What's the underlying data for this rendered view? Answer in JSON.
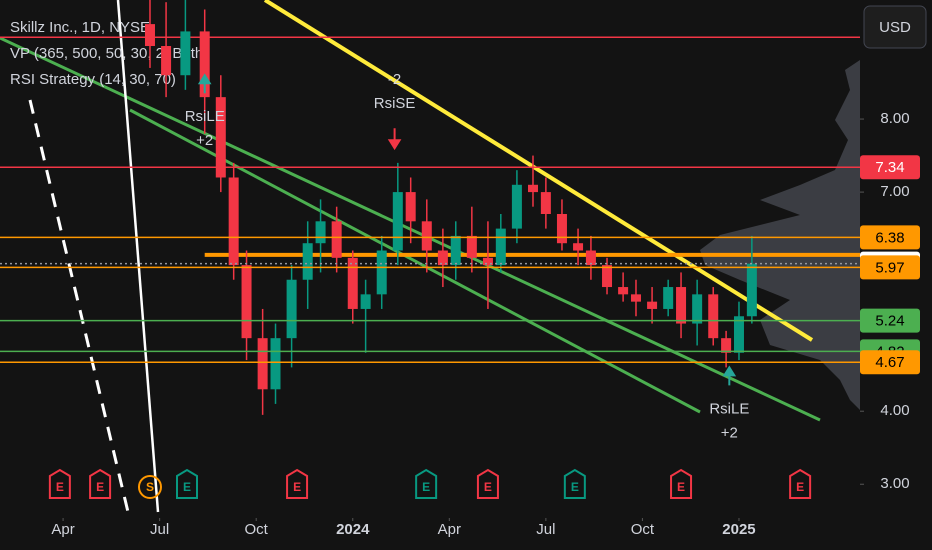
{
  "chart_data": {
    "type": "candlestick",
    "title": "Skillz Inc., 1D, NYSE",
    "indicators": [
      "VP (365, 500, 50, 30, 2, Both)",
      "RSI Strategy (14, 30, 70)"
    ],
    "currency": "USD",
    "up_color": "#089981",
    "down_color": "#f23645",
    "x": [
      5.7,
      6.2,
      6.8,
      7.4,
      7.9,
      8.3,
      8.7,
      9.2,
      9.6,
      10.1,
      10.6,
      11.0,
      11.5,
      12.0,
      12.4,
      12.9,
      13.4,
      13.8,
      14.3,
      14.8,
      15.2,
      15.7,
      16.2,
      16.6,
      17.1,
      17.6,
      18.0,
      18.5,
      19.0,
      19.4,
      19.9,
      20.4,
      20.8,
      21.3,
      21.8,
      22.2,
      22.7,
      23.2,
      23.6,
      24.0,
      24.4
    ],
    "open": [
      9.3,
      9.0,
      8.6,
      9.2,
      8.3,
      7.2,
      6.0,
      5.0,
      4.3,
      5.0,
      5.8,
      6.3,
      6.6,
      6.1,
      5.4,
      5.6,
      6.2,
      7.0,
      6.6,
      6.2,
      6.0,
      6.4,
      6.1,
      6.0,
      6.5,
      7.1,
      7.0,
      6.7,
      6.3,
      6.2,
      6.0,
      5.7,
      5.6,
      5.5,
      5.4,
      5.7,
      5.2,
      5.6,
      5.0,
      4.8,
      5.3
    ],
    "high": [
      9.8,
      9.6,
      9.7,
      9.5,
      8.6,
      7.4,
      6.2,
      5.4,
      5.2,
      6.0,
      6.6,
      6.9,
      6.8,
      6.2,
      5.8,
      6.4,
      7.4,
      7.2,
      6.9,
      6.5,
      6.6,
      6.8,
      6.6,
      6.7,
      7.3,
      7.5,
      7.2,
      6.9,
      6.5,
      6.4,
      6.1,
      5.9,
      5.8,
      5.7,
      5.8,
      5.9,
      5.8,
      5.7,
      5.1,
      5.5,
      6.4
    ],
    "low": [
      8.7,
      8.3,
      8.4,
      7.8,
      7.0,
      5.8,
      4.7,
      3.95,
      4.1,
      4.6,
      5.4,
      5.9,
      5.9,
      5.2,
      4.8,
      5.4,
      6.0,
      6.3,
      5.9,
      5.7,
      5.8,
      5.9,
      5.4,
      5.9,
      6.3,
      6.8,
      6.5,
      6.2,
      6.0,
      5.8,
      5.6,
      5.5,
      5.3,
      5.2,
      5.3,
      5.0,
      4.9,
      4.9,
      4.6,
      4.7,
      5.2
    ],
    "close": [
      9.0,
      8.6,
      9.2,
      8.3,
      7.2,
      6.0,
      5.0,
      4.3,
      5.0,
      5.8,
      6.3,
      6.6,
      6.1,
      5.4,
      5.6,
      6.2,
      7.0,
      6.6,
      6.2,
      6.0,
      6.4,
      6.1,
      6.0,
      6.5,
      7.1,
      7.0,
      6.7,
      6.3,
      6.2,
      6.0,
      5.7,
      5.6,
      5.5,
      5.4,
      5.7,
      5.2,
      5.6,
      5.0,
      4.8,
      5.3,
      6.02
    ],
    "xlim": [
      1.04,
      27.76
    ],
    "xticks": [
      {
        "value": 3,
        "label": "Apr"
      },
      {
        "value": 6,
        "label": "Jul"
      },
      {
        "value": 9,
        "label": "Oct"
      },
      {
        "value": 12,
        "label": "2024"
      },
      {
        "value": 15,
        "label": "Apr"
      },
      {
        "value": 18,
        "label": "Jul"
      },
      {
        "value": 21,
        "label": "Oct"
      },
      {
        "value": 24,
        "label": "2025"
      }
    ],
    "ylim": [
      2.62,
      9.63
    ],
    "yticks": [
      {
        "value": 8,
        "label": "8.00"
      },
      {
        "value": 7,
        "label": "7.00"
      },
      {
        "value": 4,
        "label": "4.00"
      },
      {
        "value": 3,
        "label": "3.00"
      }
    ],
    "levels": [
      {
        "value": 7.34,
        "color": "#f23645"
      },
      {
        "value": 6.38,
        "color": "#ff9800"
      },
      {
        "value": 6.02,
        "color": "#ffffff"
      },
      {
        "value": 5.97,
        "color": "#ff9800"
      },
      {
        "value": 5.24,
        "color": "#4caf50"
      },
      {
        "value": 4.82,
        "color": "#4caf50"
      },
      {
        "value": 4.67,
        "color": "#ff9800"
      }
    ],
    "lines": [
      {
        "value": 9.12,
        "color": "#f23645"
      },
      {
        "value": 6.14,
        "color": "#ff9800",
        "start": 7.4
      }
    ],
    "signals": [
      {
        "x": 7.4,
        "price": 8.6,
        "side": "long",
        "texts": [
          "RsiLE",
          "+2"
        ]
      },
      {
        "x": 13.3,
        "price": 7.6,
        "side": "short",
        "texts": [
          "-2",
          "RsiSE"
        ]
      },
      {
        "x": 23.7,
        "price": 4.6,
        "side": "long",
        "texts": [
          "RsiLE",
          "+2"
        ]
      }
    ],
    "events": [
      {
        "x": 2.9,
        "label": "E",
        "color": "#f23645"
      },
      {
        "x": 4.15,
        "label": "E",
        "color": "#f23645"
      },
      {
        "x": 5.7,
        "label": "S",
        "color": "#ff9800"
      },
      {
        "x": 6.85,
        "label": "E",
        "color": "#089981"
      },
      {
        "x": 10.27,
        "label": "E",
        "color": "#f23645"
      },
      {
        "x": 14.28,
        "label": "E",
        "color": "#089981"
      },
      {
        "x": 16.2,
        "label": "E",
        "color": "#f23645"
      },
      {
        "x": 18.9,
        "label": "E",
        "color": "#089981"
      },
      {
        "x": 22.2,
        "label": "E",
        "color": "#f23645"
      },
      {
        "x": 25.9,
        "label": "E",
        "color": "#f23645"
      }
    ]
  }
}
